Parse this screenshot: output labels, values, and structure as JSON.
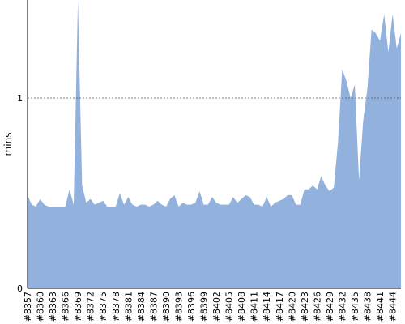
{
  "chart_data": {
    "type": "area",
    "y_label": "mins",
    "categories": [
      "#8357",
      null,
      null,
      "#8360",
      null,
      null,
      "#8363",
      null,
      null,
      "#8366",
      null,
      null,
      "#8369",
      null,
      null,
      "#8372",
      null,
      null,
      "#8375",
      null,
      null,
      "#8378",
      null,
      null,
      "#8381",
      null,
      null,
      "#8384",
      null,
      null,
      "#8387",
      null,
      null,
      "#8390",
      null,
      null,
      "#8393",
      null,
      null,
      "#8396",
      null,
      null,
      "#8399",
      null,
      null,
      "#8402",
      null,
      null,
      "#8405",
      null,
      null,
      "#8408",
      null,
      null,
      "#8411",
      null,
      null,
      "#8414",
      null,
      null,
      "#8417",
      null,
      null,
      "#8420",
      null,
      null,
      "#8423",
      null,
      null,
      "#8426",
      null,
      null,
      "#8429",
      null,
      null,
      "#8432",
      null,
      null,
      "#8435",
      null,
      null,
      "#8438",
      null,
      null,
      "#8441",
      null,
      null,
      "#8444",
      null,
      null
    ],
    "values": [
      0.49,
      0.44,
      0.43,
      0.47,
      0.44,
      0.43,
      0.43,
      0.43,
      0.43,
      0.43,
      0.52,
      0.44,
      1.51,
      0.54,
      0.45,
      0.47,
      0.44,
      0.45,
      0.46,
      0.43,
      0.43,
      0.43,
      0.5,
      0.44,
      0.48,
      0.44,
      0.43,
      0.44,
      0.44,
      0.43,
      0.44,
      0.46,
      0.44,
      0.43,
      0.47,
      0.49,
      0.43,
      0.45,
      0.44,
      0.44,
      0.45,
      0.51,
      0.44,
      0.44,
      0.48,
      0.45,
      0.44,
      0.44,
      0.44,
      0.48,
      0.45,
      0.47,
      0.49,
      0.48,
      0.44,
      0.44,
      0.43,
      0.48,
      0.43,
      0.45,
      0.46,
      0.47,
      0.49,
      0.49,
      0.44,
      0.44,
      0.52,
      0.52,
      0.54,
      0.52,
      0.59,
      0.54,
      0.51,
      0.53,
      0.77,
      1.15,
      1.09,
      1.0,
      1.07,
      0.57,
      0.88,
      1.05,
      1.36,
      1.34,
      1.3,
      1.44,
      1.24,
      1.44,
      1.26,
      1.34
    ],
    "color": "#92b1dc",
    "ylim": [
      0,
      1.515
    ],
    "yticks": [
      0,
      1
    ],
    "grid": true
  }
}
